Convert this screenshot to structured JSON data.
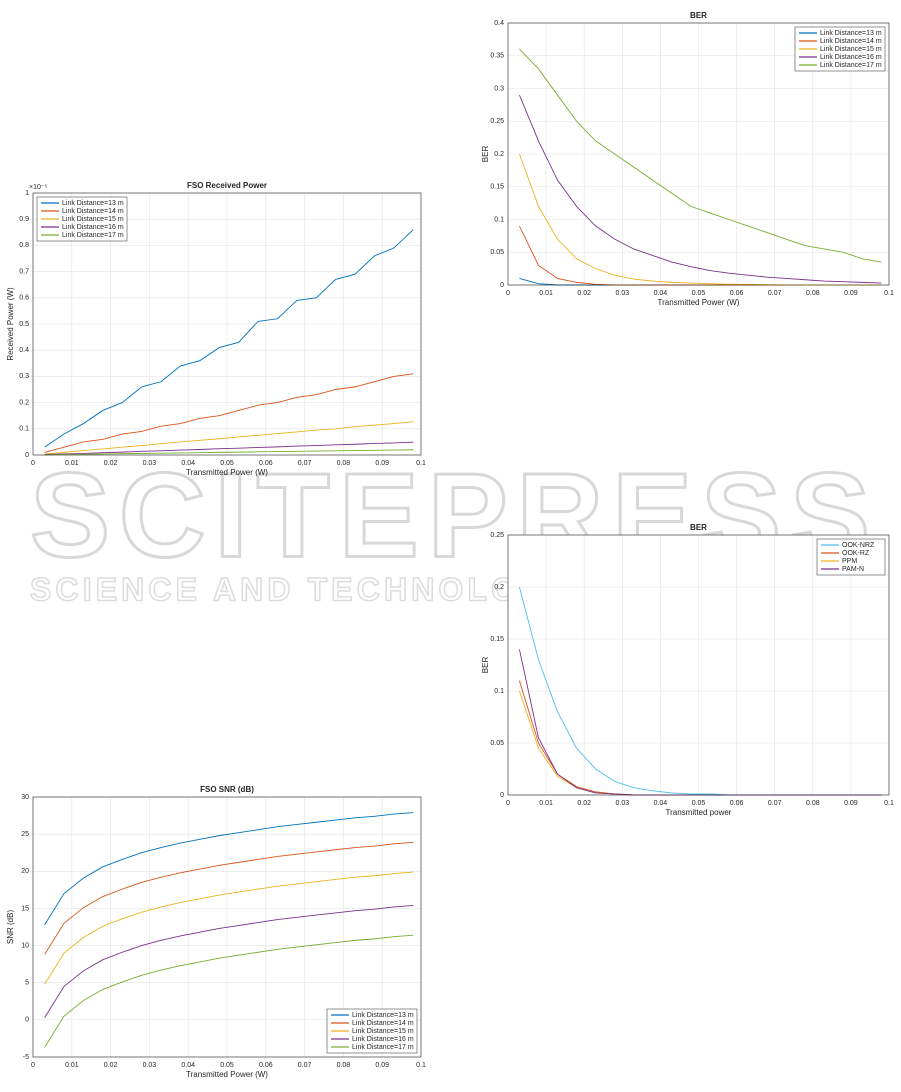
{
  "watermark": "SCITEPRESS",
  "watermark_sub": "SCIENCE AND TECHNOLOGY PUBLICATIONS",
  "chart_data": [
    {
      "type": "line",
      "title": "FSO Received Power",
      "xlabel": "Transmitted Power (W)",
      "ylabel": "Received Power (W)",
      "y_exponent": "×10⁻⁵",
      "x": [
        0.003,
        0.008,
        0.013,
        0.018,
        0.023,
        0.028,
        0.033,
        0.038,
        0.043,
        0.048,
        0.053,
        0.058,
        0.063,
        0.068,
        0.073,
        0.078,
        0.083,
        0.088,
        0.093,
        0.098
      ],
      "series": [
        {
          "name": "Link Distance=13 m",
          "color": "#0072bd",
          "values": [
            0.03,
            0.08,
            0.12,
            0.17,
            0.2,
            0.26,
            0.28,
            0.34,
            0.36,
            0.41,
            0.43,
            0.51,
            0.52,
            0.59,
            0.6,
            0.67,
            0.69,
            0.76,
            0.79,
            0.86
          ]
        },
        {
          "name": "Link Distance=14 m",
          "color": "#d95319",
          "values": [
            0.01,
            0.03,
            0.05,
            0.06,
            0.08,
            0.09,
            0.11,
            0.12,
            0.14,
            0.15,
            0.17,
            0.19,
            0.2,
            0.22,
            0.23,
            0.25,
            0.26,
            0.28,
            0.3,
            0.31
          ]
        },
        {
          "name": "Link Distance=15 m",
          "color": "#edb120",
          "values": [
            0.004,
            0.01,
            0.017,
            0.023,
            0.03,
            0.036,
            0.043,
            0.05,
            0.056,
            0.062,
            0.069,
            0.075,
            0.082,
            0.088,
            0.095,
            0.1,
            0.108,
            0.114,
            0.12,
            0.127
          ]
        },
        {
          "name": "Link Distance=16 m",
          "color": "#7e2f8e",
          "values": [
            0.002,
            0.004,
            0.006,
            0.009,
            0.011,
            0.014,
            0.016,
            0.019,
            0.021,
            0.024,
            0.026,
            0.029,
            0.031,
            0.034,
            0.036,
            0.039,
            0.041,
            0.044,
            0.046,
            0.049
          ]
        },
        {
          "name": "Link Distance=17 m",
          "color": "#77ac30",
          "values": [
            0.001,
            0.002,
            0.003,
            0.004,
            0.005,
            0.006,
            0.007,
            0.008,
            0.009,
            0.01,
            0.011,
            0.012,
            0.013,
            0.014,
            0.015,
            0.016,
            0.017,
            0.018,
            0.019,
            0.02
          ]
        }
      ],
      "xlim": [
        0,
        0.1
      ],
      "xticks": [
        0,
        0.01,
        0.02,
        0.03,
        0.04,
        0.05,
        0.06,
        0.07,
        0.08,
        0.09,
        0.1
      ],
      "ylim": [
        0,
        1
      ],
      "yticks": [
        0,
        0.1,
        0.2,
        0.3,
        0.4,
        0.5,
        0.6,
        0.7,
        0.8,
        0.9,
        1
      ],
      "grid": true,
      "legend": "upper-left"
    },
    {
      "type": "line",
      "title": "BER",
      "xlabel": "Transmitted Power (W)",
      "ylabel": "BER",
      "x": [
        0.003,
        0.008,
        0.013,
        0.018,
        0.023,
        0.028,
        0.033,
        0.038,
        0.043,
        0.048,
        0.053,
        0.058,
        0.063,
        0.068,
        0.073,
        0.078,
        0.083,
        0.088,
        0.093,
        0.098
      ],
      "series": [
        {
          "name": "Link Distance=13 m",
          "color": "#0072bd",
          "values": [
            0.01,
            0.002,
            0,
            0,
            0,
            0,
            0,
            0,
            0,
            0,
            0,
            0,
            0,
            0,
            0,
            0,
            0,
            0,
            0,
            0
          ]
        },
        {
          "name": "Link Distance=14 m",
          "color": "#d95319",
          "values": [
            0.09,
            0.03,
            0.01,
            0.004,
            0.001,
            0,
            0,
            0,
            0,
            0,
            0,
            0,
            0,
            0,
            0,
            0,
            0,
            0,
            0,
            0
          ]
        },
        {
          "name": "Link Distance=15 m",
          "color": "#edb120",
          "values": [
            0.2,
            0.12,
            0.07,
            0.04,
            0.025,
            0.015,
            0.009,
            0.006,
            0.004,
            0.003,
            0.002,
            0.001,
            0.001,
            0.0005,
            0,
            0,
            0,
            0,
            0,
            0
          ]
        },
        {
          "name": "Link Distance=16 m",
          "color": "#7e2f8e",
          "values": [
            0.29,
            0.22,
            0.16,
            0.12,
            0.09,
            0.07,
            0.055,
            0.045,
            0.035,
            0.028,
            0.022,
            0.018,
            0.015,
            0.012,
            0.01,
            0.008,
            0.006,
            0.005,
            0.004,
            0.003
          ]
        },
        {
          "name": "Link Distance=17 m",
          "color": "#77ac30",
          "values": [
            0.36,
            0.33,
            0.29,
            0.25,
            0.22,
            0.2,
            0.18,
            0.16,
            0.14,
            0.12,
            0.11,
            0.1,
            0.09,
            0.08,
            0.07,
            0.06,
            0.055,
            0.05,
            0.04,
            0.035
          ]
        }
      ],
      "xlim": [
        0,
        0.1
      ],
      "xticks": [
        0,
        0.01,
        0.02,
        0.03,
        0.04,
        0.05,
        0.06,
        0.07,
        0.08,
        0.09,
        0.1
      ],
      "ylim": [
        0,
        0.4
      ],
      "yticks": [
        0,
        0.05,
        0.1,
        0.15,
        0.2,
        0.25,
        0.3,
        0.35,
        0.4
      ],
      "grid": true,
      "legend": "upper-right"
    },
    {
      "type": "line",
      "title": "BER",
      "xlabel": "Transmitted power",
      "ylabel": "BER",
      "x": [
        0.003,
        0.008,
        0.013,
        0.018,
        0.023,
        0.028,
        0.033,
        0.038,
        0.043,
        0.048,
        0.053,
        0.058,
        0.063,
        0.068,
        0.073,
        0.078,
        0.083,
        0.088,
        0.093,
        0.098
      ],
      "series": [
        {
          "name": "OOK-NRZ",
          "color": "#4dbeee",
          "values": [
            0.2,
            0.13,
            0.08,
            0.045,
            0.025,
            0.013,
            0.007,
            0.004,
            0.002,
            0.001,
            0.001,
            0,
            0,
            0,
            0,
            0,
            0,
            0,
            0,
            0
          ]
        },
        {
          "name": "OOK-RZ",
          "color": "#d95319",
          "values": [
            0.11,
            0.05,
            0.02,
            0.008,
            0.003,
            0.001,
            0,
            0,
            0,
            0,
            0,
            0,
            0,
            0,
            0,
            0,
            0,
            0,
            0,
            0
          ]
        },
        {
          "name": "PPM",
          "color": "#edb120",
          "values": [
            0.1,
            0.045,
            0.018,
            0.007,
            0.002,
            0.001,
            0,
            0,
            0,
            0,
            0,
            0,
            0,
            0,
            0,
            0,
            0,
            0,
            0,
            0
          ]
        },
        {
          "name": "PAM-N",
          "color": "#7e2f8e",
          "values": [
            0.14,
            0.055,
            0.02,
            0.007,
            0.002,
            0.001,
            0,
            0,
            0,
            0,
            0,
            0,
            0,
            0,
            0,
            0,
            0,
            0,
            0,
            0
          ]
        }
      ],
      "xlim": [
        0,
        0.1
      ],
      "xticks": [
        0,
        0.01,
        0.02,
        0.03,
        0.04,
        0.05,
        0.06,
        0.07,
        0.08,
        0.09,
        0.1
      ],
      "ylim": [
        0,
        0.25
      ],
      "yticks": [
        0,
        0.05,
        0.1,
        0.15,
        0.2,
        0.25
      ],
      "grid": true,
      "legend": "upper-right"
    },
    {
      "type": "line",
      "title": "FSO SNR (dB)",
      "xlabel": "Transmitted Power (W)",
      "ylabel": "SNR (dB)",
      "x": [
        0.003,
        0.008,
        0.013,
        0.018,
        0.023,
        0.028,
        0.033,
        0.038,
        0.043,
        0.048,
        0.053,
        0.058,
        0.063,
        0.068,
        0.073,
        0.078,
        0.083,
        0.088,
        0.093,
        0.098
      ],
      "series": [
        {
          "name": "Link Distance=13 m",
          "color": "#0072bd",
          "values": [
            12.8,
            17,
            19.1,
            20.6,
            21.6,
            22.5,
            23.2,
            23.8,
            24.3,
            24.8,
            25.2,
            25.6,
            26,
            26.3,
            26.6,
            26.9,
            27.2,
            27.4,
            27.7,
            27.9
          ]
        },
        {
          "name": "Link Distance=14 m",
          "color": "#d95319",
          "values": [
            8.8,
            13,
            15.1,
            16.6,
            17.6,
            18.5,
            19.2,
            19.8,
            20.3,
            20.8,
            21.2,
            21.6,
            22,
            22.3,
            22.6,
            22.9,
            23.2,
            23.4,
            23.7,
            23.9
          ]
        },
        {
          "name": "Link Distance=15 m",
          "color": "#edb120",
          "values": [
            4.8,
            9,
            11.1,
            12.6,
            13.6,
            14.5,
            15.2,
            15.8,
            16.3,
            16.8,
            17.2,
            17.6,
            18,
            18.3,
            18.6,
            18.9,
            19.2,
            19.4,
            19.7,
            19.9
          ]
        },
        {
          "name": "Link Distance=16 m",
          "color": "#7e2f8e",
          "values": [
            0.3,
            4.5,
            6.6,
            8.1,
            9.1,
            10,
            10.7,
            11.3,
            11.8,
            12.3,
            12.7,
            13.1,
            13.5,
            13.8,
            14.1,
            14.4,
            14.7,
            14.9,
            15.2,
            15.4
          ]
        },
        {
          "name": "Link Distance=17 m",
          "color": "#77ac30",
          "values": [
            -3.7,
            0.5,
            2.6,
            4.1,
            5.1,
            6,
            6.7,
            7.3,
            7.8,
            8.3,
            8.7,
            9.1,
            9.5,
            9.8,
            10.1,
            10.4,
            10.7,
            10.9,
            11.2,
            11.4
          ]
        }
      ],
      "xlim": [
        0,
        0.1
      ],
      "xticks": [
        0,
        0.01,
        0.02,
        0.03,
        0.04,
        0.05,
        0.06,
        0.07,
        0.08,
        0.09,
        0.1
      ],
      "ylim": [
        -5,
        30
      ],
      "yticks": [
        -5,
        0,
        5,
        10,
        15,
        20,
        25,
        30
      ],
      "grid": true,
      "legend": "lower-right"
    }
  ]
}
